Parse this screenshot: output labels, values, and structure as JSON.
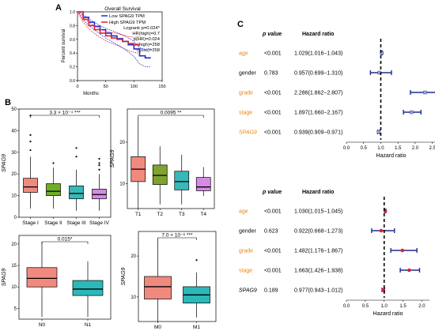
{
  "panel_labels": {
    "a": "A",
    "b": "B",
    "c": "C"
  },
  "colors": {
    "km_low": "#1f2bd6",
    "km_high": "#e0202a",
    "stage_fill": [
      "#f08a7e",
      "#6fae2a",
      "#39b8b8",
      "#d58ae6"
    ],
    "t_fill": [
      "#f08a7e",
      "#7fa32e",
      "#39b8b8",
      "#d58ae6"
    ],
    "two_fill": [
      "#f08a7e",
      "#2cb8b8"
    ],
    "forest_uni": "#1f2b8f",
    "forest_multi": "#1f2b8f",
    "point_uni": "#9aa7d8",
    "point_multi": "#e0202a",
    "orange_label": "#e8861a"
  },
  "chart_data": [
    {
      "id": "km",
      "type": "line",
      "title": "Overall Survival",
      "xlabel": "Months",
      "ylabel": "Percent survival",
      "xlim": [
        0,
        150
      ],
      "ylim": [
        0,
        1.0
      ],
      "xticks": [
        "0",
        "50",
        "100",
        "150"
      ],
      "yticks": [
        "0.0",
        "0.2",
        "0.4",
        "0.6",
        "0.8",
        "1.0"
      ],
      "legend": [
        "Low SPAG9 TPM",
        "High SPAG9 TPM"
      ],
      "stats": [
        "Logrank p=0.024*",
        "HR(high)=0.7",
        "p(HR)=0.024",
        "n(high)=258",
        "n(low)=258"
      ],
      "series": [
        {
          "name": "Low SPAG9 TPM",
          "x": [
            0,
            10,
            20,
            30,
            40,
            50,
            60,
            70,
            80,
            90,
            100,
            110,
            120,
            130
          ],
          "y": [
            1.0,
            0.92,
            0.85,
            0.79,
            0.74,
            0.69,
            0.65,
            0.61,
            0.57,
            0.52,
            0.46,
            0.36,
            0.33,
            0.33
          ]
        },
        {
          "name": "High SPAG9 TPM",
          "x": [
            0,
            10,
            20,
            30,
            40,
            50,
            60,
            70,
            80,
            90,
            100,
            110
          ],
          "y": [
            1.0,
            0.89,
            0.8,
            0.74,
            0.69,
            0.65,
            0.62,
            0.6,
            0.57,
            0.54,
            0.52,
            0.52
          ]
        }
      ]
    },
    {
      "id": "stage",
      "type": "box",
      "ylabel": "SPAG9",
      "ylim": [
        0,
        50
      ],
      "yticks": [
        "0",
        "10",
        "20",
        "30",
        "40",
        "50"
      ],
      "categories": [
        "Stage I",
        "Stage II",
        "Stage III",
        "Stage IV"
      ],
      "annotation": "3.3 × 10⁻⁴ ***",
      "boxes": [
        {
          "q1": 11.5,
          "med": 14,
          "q3": 18,
          "lo": 4,
          "hi": 28
        },
        {
          "q1": 10,
          "med": 12,
          "q3": 15.5,
          "lo": 4,
          "hi": 23
        },
        {
          "q1": 8.5,
          "med": 11,
          "q3": 14.5,
          "lo": 3,
          "hi": 22
        },
        {
          "q1": 8.5,
          "med": 10.5,
          "q3": 13,
          "lo": 3,
          "hi": 20
        }
      ],
      "outliers": [
        [
          0,
          47
        ],
        [
          0,
          38
        ],
        [
          0,
          35
        ],
        [
          0,
          31
        ],
        [
          1,
          25
        ],
        [
          2,
          28
        ],
        [
          2,
          32
        ],
        [
          3,
          22
        ],
        [
          3,
          24
        ],
        [
          3,
          25
        ],
        [
          3,
          27
        ]
      ]
    },
    {
      "id": "t",
      "type": "box",
      "ylabel": "SPAG9",
      "ylim": [
        4,
        28
      ],
      "yticks": [
        "10",
        "20"
      ],
      "categories": [
        "T1",
        "T2",
        "T3",
        "T4"
      ],
      "annotation": "0.0095 **",
      "boxes": [
        {
          "q1": 10.5,
          "med": 13.5,
          "q3": 16.5,
          "lo": 4,
          "hi": 26
        },
        {
          "q1": 9.8,
          "med": 12,
          "q3": 14.5,
          "lo": 5,
          "hi": 19
        },
        {
          "q1": 8.5,
          "med": 10.5,
          "q3": 13,
          "lo": 5,
          "hi": 17
        },
        {
          "q1": 8.3,
          "med": 9.2,
          "q3": 11.5,
          "lo": 7,
          "hi": 14
        }
      ],
      "outliers": []
    },
    {
      "id": "n",
      "type": "box",
      "ylabel": "SPAG9",
      "ylim": [
        2.5,
        22
      ],
      "yticks": [
        "5",
        "10",
        "15",
        "20"
      ],
      "categories": [
        "N0",
        "N1"
      ],
      "annotation": "0.015*",
      "boxes": [
        {
          "q1": 10,
          "med": 12,
          "q3": 14.5,
          "lo": 3,
          "hi": 20.5
        },
        {
          "q1": 8,
          "med": 9.5,
          "q3": 11.5,
          "lo": 3,
          "hi": 16
        }
      ],
      "outliers": []
    },
    {
      "id": "m",
      "type": "box",
      "ylabel": "SPAG9",
      "ylim": [
        4,
        26
      ],
      "yticks": [
        "10",
        "20"
      ],
      "categories": [
        "M0",
        "M1"
      ],
      "annotation": "7.0 × 10⁻⁶ ***",
      "boxes": [
        {
          "q1": 9.5,
          "med": 12.5,
          "q3": 15,
          "lo": 4,
          "hi": 24
        },
        {
          "q1": 8.5,
          "med": 10.5,
          "q3": 12.5,
          "lo": 5,
          "hi": 16
        }
      ],
      "outliers": [
        [
          1,
          19
        ]
      ]
    },
    {
      "id": "forest_uni",
      "type": "forest",
      "headers": [
        "p value",
        "Hazard ratio"
      ],
      "xlabel": "Hazard ratio",
      "xlim": [
        0,
        2.6
      ],
      "xticks": [
        "0.0",
        "0.5",
        "1.0",
        "1.5",
        "2.0",
        "2.5"
      ],
      "rows": [
        {
          "var": "age",
          "p": "<0.001",
          "hr_text": "1.029(1.016−1.043)",
          "hr": 1.029,
          "lo": 1.016,
          "hi": 1.043,
          "orange": true,
          "italic": false
        },
        {
          "var": "gender",
          "p": "0.783",
          "hr_text": "0.957(0.699−1.310)",
          "hr": 0.957,
          "lo": 0.699,
          "hi": 1.31,
          "orange": false,
          "italic": false
        },
        {
          "var": "grade",
          "p": "<0.001",
          "hr_text": "2.286(1.862−2.807)",
          "hr": 2.286,
          "lo": 1.862,
          "hi": 2.807,
          "orange": true,
          "italic": false
        },
        {
          "var": "stage",
          "p": "<0.001",
          "hr_text": "1.897(1.660−2.167)",
          "hr": 1.897,
          "lo": 1.66,
          "hi": 2.167,
          "orange": true,
          "italic": false
        },
        {
          "var": "SPAG9",
          "p": "<0.001",
          "hr_text": "0.939(0.909−0.971)",
          "hr": 0.939,
          "lo": 0.909,
          "hi": 0.971,
          "orange": true,
          "italic": true
        }
      ]
    },
    {
      "id": "forest_multi",
      "type": "forest",
      "headers": [
        "p value",
        "Hazard ratio"
      ],
      "xlabel": "Hazard ratio",
      "xlim": [
        0,
        2.2
      ],
      "xticks": [
        "0.0",
        "0.5",
        "1.0",
        "1.5",
        "2.0"
      ],
      "rows": [
        {
          "var": "age",
          "p": "<0.001",
          "hr_text": "1.030(1.015−1.045)",
          "hr": 1.03,
          "lo": 1.015,
          "hi": 1.045,
          "orange": true,
          "italic": false
        },
        {
          "var": "gender",
          "p": "0.623",
          "hr_text": "0.922(0.668−1.273)",
          "hr": 0.922,
          "lo": 0.668,
          "hi": 1.273,
          "orange": false,
          "italic": false
        },
        {
          "var": "grade",
          "p": "<0.001",
          "hr_text": "1.482(1.176−1.867)",
          "hr": 1.482,
          "lo": 1.176,
          "hi": 1.867,
          "orange": true,
          "italic": false
        },
        {
          "var": "stage",
          "p": "<0.001",
          "hr_text": "1.663(1.426−1.938)",
          "hr": 1.663,
          "lo": 1.426,
          "hi": 1.938,
          "orange": true,
          "italic": false
        },
        {
          "var": "SPAG9",
          "p": "0.189",
          "hr_text": "0.977(0.943−1.012)",
          "hr": 0.977,
          "lo": 0.943,
          "hi": 1.012,
          "orange": false,
          "italic": true
        }
      ]
    }
  ]
}
